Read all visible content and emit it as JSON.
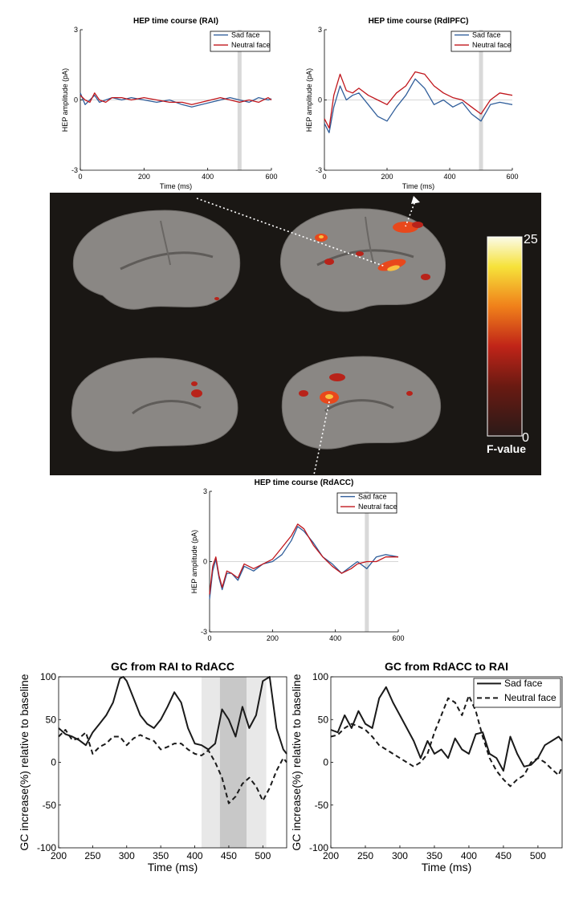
{
  "colors": {
    "sad": "#2f5d9a",
    "neutral": "#c0161c",
    "brain_bg": "#1a1714",
    "cortex": "#8a8784",
    "gc_line": "#1a1a1a",
    "shade_light": "#e8e8e8",
    "shade_dark": "#c8c8c8"
  },
  "colorbar": {
    "max_label": "25",
    "min_label": "0",
    "label": "F-value"
  },
  "chart_data": [
    {
      "type": "line",
      "title": "HEP time course (RAI)",
      "xlabel": "Time (ms)",
      "ylabel": "HEP amplitude (pA)",
      "xlim": [
        0,
        600
      ],
      "ylim": [
        -3,
        3
      ],
      "xticks": [
        "0",
        "200",
        "400",
        "600"
      ],
      "yticks": [
        "3",
        "0",
        "-3"
      ],
      "legend": "top-right",
      "highlight_x": 500,
      "series": [
        {
          "name": "Sad face",
          "x": [
            0,
            15,
            30,
            45,
            60,
            80,
            100,
            130,
            160,
            200,
            240,
            280,
            320,
            350,
            380,
            410,
            440,
            470,
            500,
            530,
            560,
            590,
            600
          ],
          "values": [
            0.3,
            -0.2,
            0.0,
            0.2,
            -0.1,
            0.0,
            0.1,
            0.0,
            0.1,
            0.0,
            -0.1,
            0.0,
            -0.2,
            -0.3,
            -0.2,
            -0.1,
            0.0,
            0.1,
            0.0,
            -0.1,
            0.1,
            0.0,
            0.05
          ]
        },
        {
          "name": "Neutral face",
          "x": [
            0,
            15,
            30,
            45,
            60,
            80,
            100,
            130,
            160,
            200,
            240,
            280,
            320,
            350,
            380,
            410,
            440,
            470,
            500,
            530,
            560,
            590,
            600
          ],
          "values": [
            0.2,
            0.0,
            -0.1,
            0.3,
            0.0,
            -0.1,
            0.1,
            0.1,
            0.0,
            0.1,
            0.0,
            -0.1,
            -0.1,
            -0.2,
            -0.1,
            0.0,
            0.1,
            0.0,
            -0.1,
            0.0,
            -0.1,
            0.1,
            0.0
          ]
        }
      ]
    },
    {
      "type": "line",
      "title": "HEP time course (RdlPFC)",
      "xlabel": "Time (ms)",
      "ylabel": "HEP amplitude (pA)",
      "xlim": [
        0,
        600
      ],
      "ylim": [
        -3,
        3
      ],
      "xticks": [
        "0",
        "200",
        "400",
        "600"
      ],
      "yticks": [
        "3",
        "0",
        "-3"
      ],
      "legend": "top-right",
      "highlight_x": 500,
      "series": [
        {
          "name": "Sad face",
          "x": [
            0,
            15,
            30,
            50,
            70,
            90,
            110,
            140,
            170,
            200,
            230,
            260,
            290,
            320,
            350,
            380,
            410,
            440,
            470,
            500,
            530,
            560,
            600
          ],
          "values": [
            -1.0,
            -1.4,
            -0.3,
            0.6,
            0.0,
            0.2,
            0.3,
            -0.2,
            -0.7,
            -0.9,
            -0.3,
            0.2,
            0.9,
            0.5,
            -0.2,
            0.0,
            -0.3,
            -0.1,
            -0.6,
            -0.9,
            -0.2,
            -0.1,
            -0.2
          ]
        },
        {
          "name": "Neutral face",
          "x": [
            0,
            15,
            30,
            50,
            70,
            90,
            110,
            140,
            170,
            200,
            230,
            260,
            290,
            320,
            350,
            380,
            410,
            440,
            470,
            500,
            530,
            560,
            600
          ],
          "values": [
            -0.8,
            -1.2,
            0.2,
            1.1,
            0.4,
            0.3,
            0.5,
            0.2,
            0.0,
            -0.2,
            0.3,
            0.6,
            1.2,
            1.1,
            0.6,
            0.3,
            0.1,
            0.0,
            -0.3,
            -0.6,
            0.0,
            0.3,
            0.2
          ]
        }
      ]
    },
    {
      "type": "line",
      "title": "HEP time course (RdACC)",
      "xlabel": "",
      "ylabel": "HEP amplitude (pA)",
      "xlim": [
        0,
        600
      ],
      "ylim": [
        -3,
        3
      ],
      "xticks": [
        "0",
        "200",
        "400",
        "600"
      ],
      "yticks": [
        "3",
        "0",
        "-3"
      ],
      "legend": "top-right",
      "highlight_x": 500,
      "series": [
        {
          "name": "Sad face",
          "x": [
            0,
            10,
            20,
            30,
            40,
            55,
            70,
            90,
            110,
            140,
            170,
            200,
            230,
            260,
            280,
            300,
            330,
            360,
            390,
            420,
            450,
            470,
            500,
            530,
            560,
            600
          ],
          "values": [
            -1.6,
            -0.4,
            0.1,
            -0.7,
            -1.2,
            -0.5,
            -0.5,
            -0.8,
            -0.2,
            -0.4,
            -0.1,
            0.0,
            0.3,
            0.9,
            1.5,
            1.3,
            0.8,
            0.2,
            -0.1,
            -0.5,
            -0.2,
            0.0,
            -0.3,
            0.2,
            0.3,
            0.2
          ]
        },
        {
          "name": "Neutral face",
          "x": [
            0,
            10,
            20,
            30,
            40,
            55,
            70,
            90,
            110,
            140,
            170,
            200,
            230,
            260,
            280,
            300,
            330,
            360,
            390,
            420,
            450,
            470,
            500,
            530,
            560,
            600
          ],
          "values": [
            -1.4,
            -0.2,
            0.2,
            -0.6,
            -1.1,
            -0.4,
            -0.5,
            -0.7,
            -0.1,
            -0.3,
            -0.1,
            0.1,
            0.6,
            1.1,
            1.6,
            1.4,
            0.7,
            0.2,
            -0.2,
            -0.5,
            -0.3,
            -0.1,
            0.0,
            0.0,
            0.2,
            0.2
          ]
        }
      ]
    },
    {
      "type": "line",
      "title": "GC from RAI to RdACC",
      "xlabel": "Time (ms)",
      "ylabel": "GC increase(%) relative to baseline",
      "xlim": [
        200,
        535
      ],
      "ylim": [
        -100,
        100
      ],
      "xticks": [
        "200",
        "250",
        "300",
        "350",
        "400",
        "450",
        "500"
      ],
      "yticks": [
        "100",
        "50",
        "0",
        "-50",
        "-100"
      ],
      "shade_light": [
        410,
        505
      ],
      "shade_dark": [
        437,
        476
      ],
      "series": [
        {
          "name": "Sad face",
          "x": [
            200,
            210,
            220,
            230,
            240,
            250,
            260,
            270,
            280,
            290,
            295,
            300,
            310,
            320,
            330,
            340,
            350,
            360,
            370,
            380,
            390,
            400,
            410,
            420,
            430,
            440,
            450,
            460,
            470,
            480,
            490,
            500,
            510,
            520,
            530,
            535
          ],
          "values": [
            40,
            33,
            30,
            26,
            20,
            35,
            45,
            55,
            70,
            98,
            100,
            95,
            75,
            55,
            45,
            40,
            50,
            65,
            82,
            70,
            40,
            22,
            20,
            15,
            22,
            62,
            50,
            30,
            65,
            40,
            55,
            95,
            100,
            40,
            15,
            10
          ]
        },
        {
          "name": "Neutral face",
          "x": [
            200,
            210,
            220,
            230,
            240,
            250,
            260,
            270,
            280,
            290,
            300,
            310,
            320,
            330,
            340,
            350,
            360,
            370,
            380,
            390,
            400,
            410,
            420,
            430,
            440,
            450,
            460,
            470,
            480,
            490,
            500,
            510,
            520,
            530,
            535
          ],
          "values": [
            30,
            38,
            26,
            28,
            35,
            10,
            18,
            22,
            30,
            30,
            20,
            28,
            32,
            28,
            25,
            15,
            18,
            22,
            22,
            15,
            10,
            8,
            14,
            0,
            -18,
            -48,
            -40,
            -25,
            -18,
            -28,
            -45,
            -30,
            -10,
            5,
            0
          ]
        }
      ]
    },
    {
      "type": "line",
      "title": "GC from RdACC to RAI",
      "xlabel": "Time (ms)",
      "ylabel": "GC increase(%) relative to baseline",
      "xlim": [
        200,
        535
      ],
      "ylim": [
        -100,
        100
      ],
      "xticks": [
        "200",
        "250",
        "300",
        "350",
        "400",
        "450",
        "500"
      ],
      "yticks": [
        "100",
        "50",
        "0",
        "-50",
        "-100"
      ],
      "legend": "top-right",
      "series": [
        {
          "name": "Sad face",
          "x": [
            200,
            210,
            220,
            230,
            240,
            250,
            260,
            270,
            280,
            290,
            300,
            310,
            320,
            330,
            340,
            350,
            360,
            370,
            380,
            390,
            400,
            410,
            420,
            430,
            440,
            450,
            460,
            470,
            480,
            490,
            500,
            510,
            520,
            530,
            535
          ],
          "values": [
            38,
            35,
            55,
            40,
            60,
            45,
            40,
            75,
            88,
            70,
            55,
            40,
            25,
            5,
            25,
            10,
            15,
            5,
            28,
            15,
            10,
            33,
            35,
            10,
            5,
            -10,
            30,
            10,
            -5,
            -3,
            5,
            20,
            25,
            30,
            25
          ]
        },
        {
          "name": "Neutral face",
          "x": [
            200,
            210,
            220,
            230,
            240,
            250,
            260,
            270,
            280,
            290,
            300,
            310,
            320,
            330,
            340,
            350,
            360,
            370,
            380,
            390,
            400,
            410,
            420,
            430,
            440,
            450,
            460,
            470,
            480,
            490,
            500,
            510,
            520,
            530,
            535
          ],
          "values": [
            30,
            32,
            40,
            45,
            42,
            38,
            30,
            20,
            15,
            10,
            5,
            0,
            -5,
            0,
            10,
            35,
            55,
            75,
            70,
            55,
            78,
            60,
            30,
            5,
            -10,
            -20,
            -28,
            -20,
            -15,
            0,
            5,
            0,
            -8,
            -15,
            -5
          ]
        }
      ]
    }
  ]
}
